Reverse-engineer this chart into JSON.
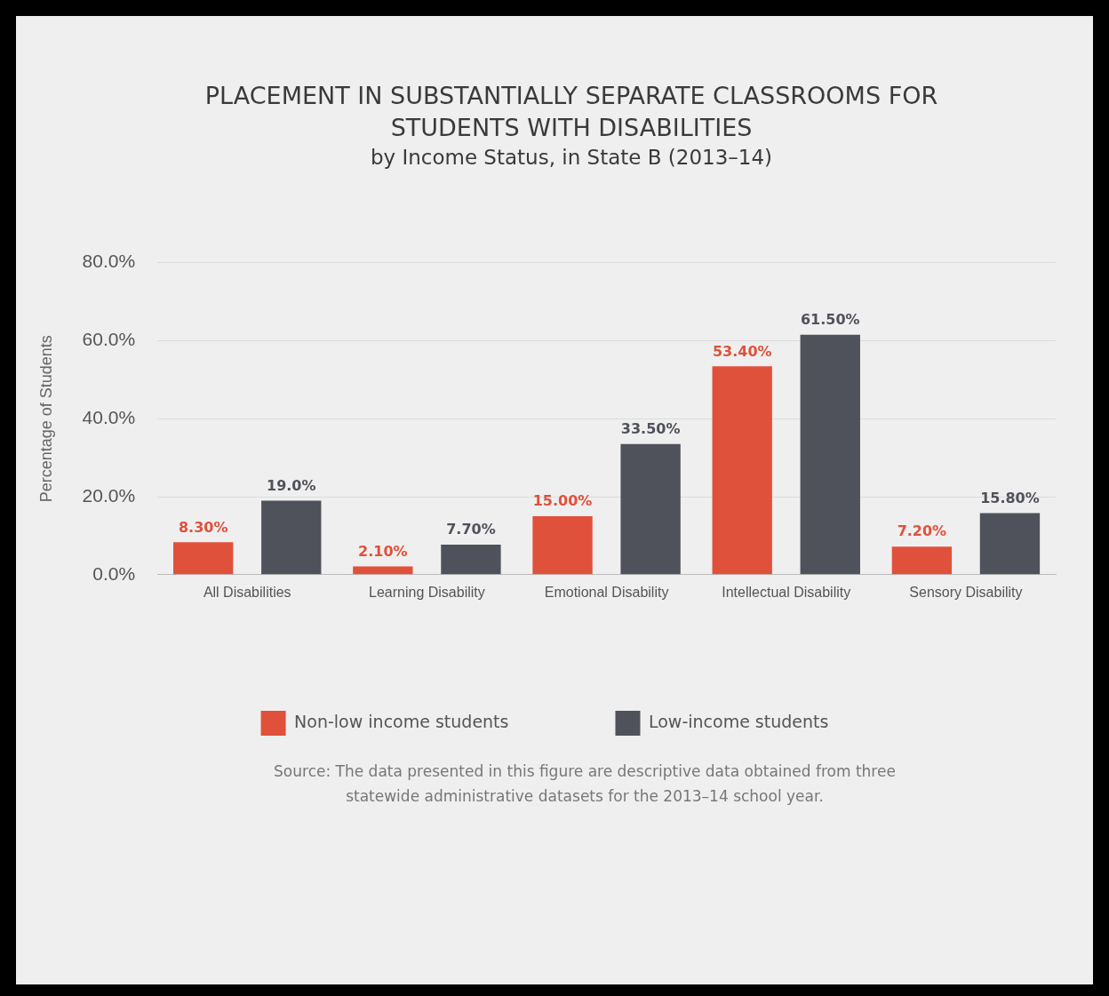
{
  "chart_data": {
    "type": "bar",
    "title": "PLACEMENT IN SUBSTANTIALLY SEPARATE CLASSROOMS FOR STUDENTS WITH DISABILITIES",
    "subtitle": "by Income Status, in State B (2013–14)",
    "ylabel": "Percentage of Students",
    "categories": [
      "All Disabilities",
      "Learning Disability",
      "Emotional Disability",
      "Intellectual Disability",
      "Sensory Disability"
    ],
    "series": [
      {
        "name": "Non-low income students",
        "color": "#e0513b",
        "values": [
          8.3,
          2.1,
          15,
          53.4,
          7.2
        ],
        "value_labels": [
          "8.30%",
          "2.10%",
          "15.00%",
          "53.40%",
          "7.20%"
        ]
      },
      {
        "name": "Low-income students",
        "color": "#50525b",
        "values": [
          19,
          7.7,
          33.5,
          61.5,
          15.8
        ],
        "value_labels": [
          "19.0%",
          "7.70%",
          "33.50%",
          "61.50%",
          "15.80%"
        ]
      }
    ],
    "ylim": [
      0,
      80
    ],
    "yticks": [
      {
        "value": 0,
        "label": "0.0%"
      },
      {
        "value": 20,
        "label": "20.0%"
      },
      {
        "value": 40,
        "label": "40.0%"
      },
      {
        "value": 60,
        "label": "60.0%"
      },
      {
        "value": 80,
        "label": "80.0%"
      }
    ],
    "grid": "y",
    "legend": "bottom",
    "annotations": [
      "Source: The data presented in this figure are descriptive data obtained from three statewide administrative datasets for the 2013–14 school year."
    ]
  }
}
